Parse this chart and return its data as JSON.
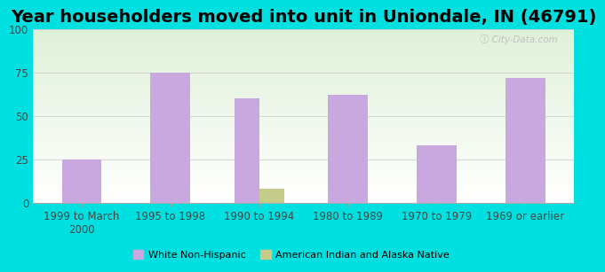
{
  "title": "Year householders moved into unit in Uniondale, IN (46791)",
  "categories": [
    "1999 to March\n2000",
    "1995 to 1998",
    "1990 to 1994",
    "1980 to 1989",
    "1970 to 1979",
    "1969 or earlier"
  ],
  "white_values": [
    25,
    75,
    60,
    62,
    33,
    72
  ],
  "native_values": [
    0,
    0,
    8,
    0,
    0,
    0
  ],
  "white_color": "#c9a8e0",
  "native_color": "#c5cc8a",
  "ylim": [
    0,
    100
  ],
  "yticks": [
    0,
    25,
    50,
    75,
    100
  ],
  "bg_color": "#00e0e0",
  "plot_bg_top": "#dff0d8",
  "plot_bg_bottom": "#ffffff",
  "grid_color": "#d0d0d0",
  "title_fontsize": 14,
  "tick_fontsize": 8.5,
  "legend_white": "White Non-Hispanic",
  "legend_native": "American Indian and Alaska Native",
  "bar_width": 0.28
}
